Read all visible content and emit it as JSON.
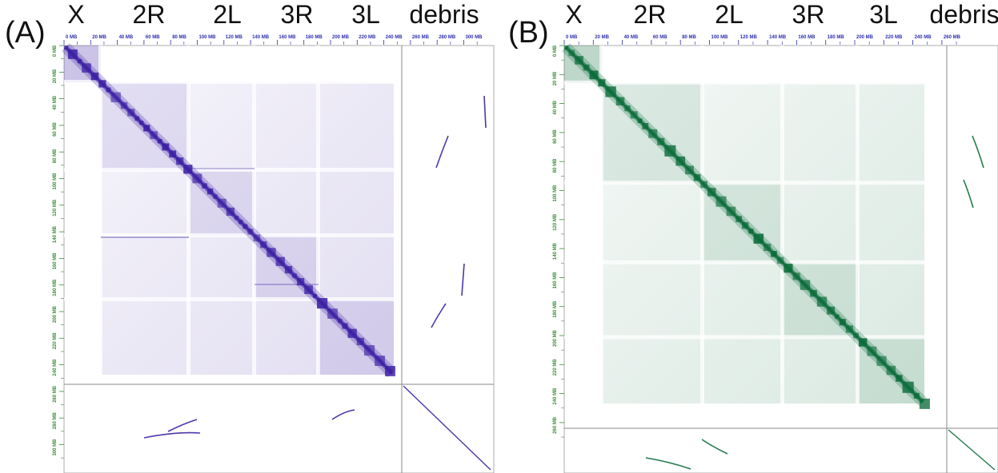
{
  "panels": [
    {
      "id": "A",
      "letter": "(A)",
      "chromosomes": [
        "X",
        "2R",
        "2L",
        "3R",
        "3L",
        "debris"
      ],
      "color": "#3b1fa3",
      "axis_color_top": "#2f2fb0",
      "axis_color_left": "#3a8a3a",
      "top_ticks": [
        "0 MB",
        "20 MB",
        "40 MB",
        "60 MB",
        "80 MB",
        "100 MB",
        "120 MB",
        "140 MB",
        "160 MB",
        "180 MB",
        "200 MB",
        "220 MB",
        "240 MB",
        "260 MB",
        "280 MB",
        "300 MB"
      ],
      "left_ticks": [
        "0 MB",
        "20 MB",
        "40 MB",
        "60 MB",
        "80 MB",
        "100 MB",
        "120 MB",
        "140 MB",
        "160 MB",
        "180 MB",
        "200 MB",
        "220 MB",
        "240 MB",
        "260 MB",
        "280 MB",
        "300 MB"
      ]
    },
    {
      "id": "B",
      "letter": "(B)",
      "chromosomes": [
        "X",
        "2R",
        "2L",
        "3R",
        "3L",
        "debris"
      ],
      "color": "#0b6b3a",
      "axis_color_top": "#2f2fb0",
      "axis_color_left": "#3a8a3a",
      "top_ticks": [
        "0 MB",
        "20 MB",
        "40 MB",
        "60 MB",
        "80 MB",
        "100 MB",
        "120 MB",
        "140 MB",
        "160 MB",
        "180 MB",
        "200 MB",
        "220 MB",
        "240 MB",
        "260 MB"
      ],
      "left_ticks": [
        "0 MB",
        "20 MB",
        "40 MB",
        "60 MB",
        "80 MB",
        "100 MB",
        "120 MB",
        "140 MB",
        "160 MB",
        "180 MB",
        "200 MB",
        "220 MB",
        "240 MB",
        "260 MB"
      ]
    }
  ]
}
